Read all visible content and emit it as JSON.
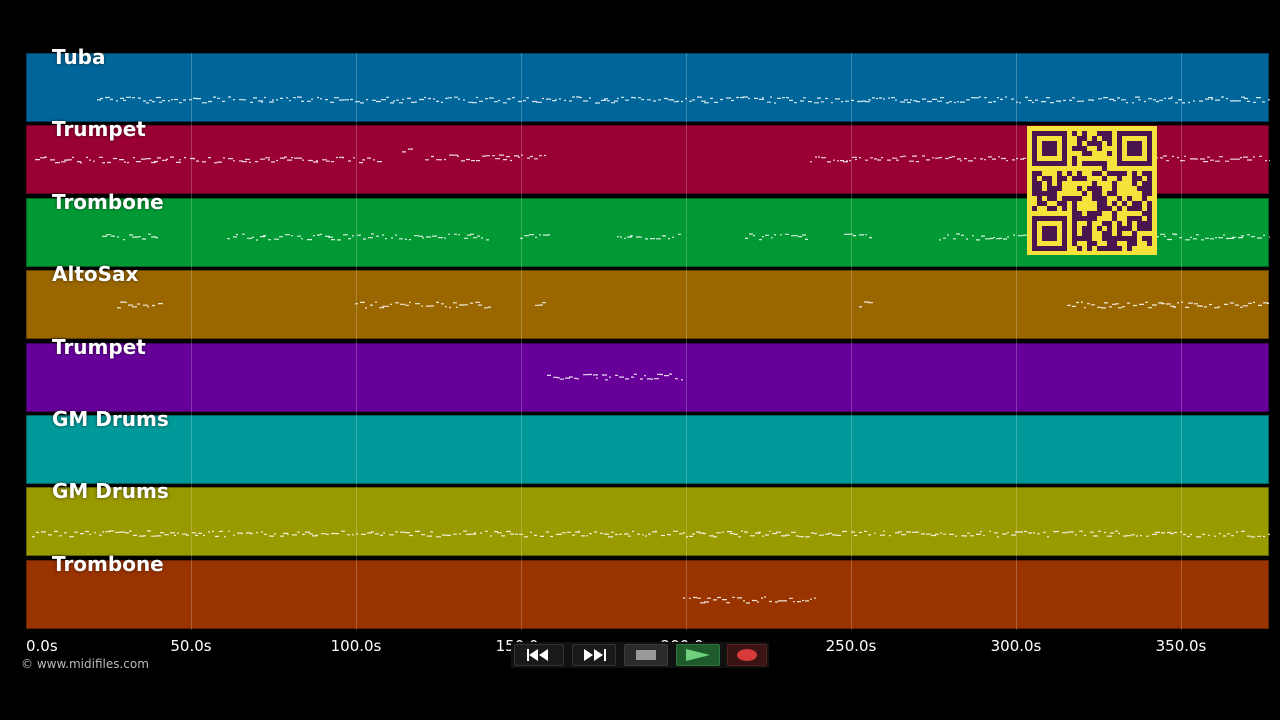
{
  "tracks": [
    {
      "name": "Tuba",
      "color": "#006699"
    },
    {
      "name": "Trumpet",
      "color": "#990033"
    },
    {
      "name": "Trombone",
      "color": "#009933"
    },
    {
      "name": "AltoSax",
      "color": "#996600"
    },
    {
      "name": "Trumpet",
      "color": "#660099"
    },
    {
      "name": "GM Drums",
      "color": "#009999"
    },
    {
      "name": "GM Drums",
      "color": "#999900"
    },
    {
      "name": "Trombone",
      "color": "#993300"
    }
  ],
  "timeline": {
    "ticks": [
      "0.0s",
      "50.0s",
      "100.0s",
      "150.0s",
      "200.0s",
      "250.0s",
      "300.0s",
      "350.0s"
    ]
  },
  "footer": {
    "copyright": "© www.midifiles.com"
  },
  "transport": {
    "buttons": [
      {
        "name": "rewind-button",
        "icon": "rewind-icon"
      },
      {
        "name": "fast-forward-button",
        "icon": "fast-forward-icon"
      },
      {
        "name": "stop-button",
        "icon": "stop-icon"
      },
      {
        "name": "play-button",
        "icon": "play-icon"
      },
      {
        "name": "record-button",
        "icon": "record-icon"
      }
    ]
  }
}
